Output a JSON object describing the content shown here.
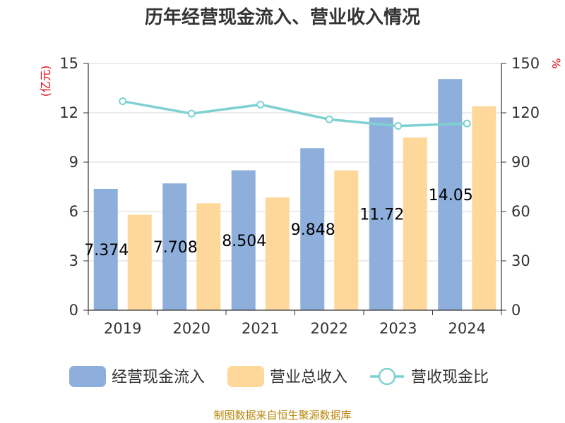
{
  "chart_data": {
    "type": "bar",
    "title": "历年经营现金流入、营业收入情况",
    "categories": [
      "2019",
      "2020",
      "2021",
      "2022",
      "2023",
      "2024"
    ],
    "series": [
      {
        "name": "经营现金流入",
        "kind": "bar",
        "axis": "left",
        "color": "#8eaedb",
        "values": [
          7.374,
          7.708,
          8.504,
          9.848,
          11.72,
          14.05
        ],
        "labels": [
          "7.374",
          "7.708",
          "8.504",
          "9.848",
          "11.72",
          "14.05"
        ]
      },
      {
        "name": "营业总收入",
        "kind": "bar",
        "axis": "left",
        "color": "#fed89a",
        "values": [
          5.8,
          6.5,
          6.85,
          8.5,
          10.5,
          12.4
        ]
      },
      {
        "name": "营收现金比",
        "kind": "line",
        "axis": "right",
        "color": "#7fd1d1",
        "values": [
          127,
          119.5,
          125,
          116,
          112,
          113.5
        ]
      }
    ],
    "y_left": {
      "label": "(亿元)",
      "min": 0,
      "max": 15,
      "ticks": [
        0,
        3,
        6,
        9,
        12,
        15
      ]
    },
    "y_right": {
      "label": "%",
      "min": 0,
      "max": 150,
      "ticks": [
        0,
        30,
        60,
        90,
        120,
        150
      ]
    },
    "grid": true,
    "legend_position": "bottom"
  },
  "source": "制图数据来自恒生聚源数据库"
}
